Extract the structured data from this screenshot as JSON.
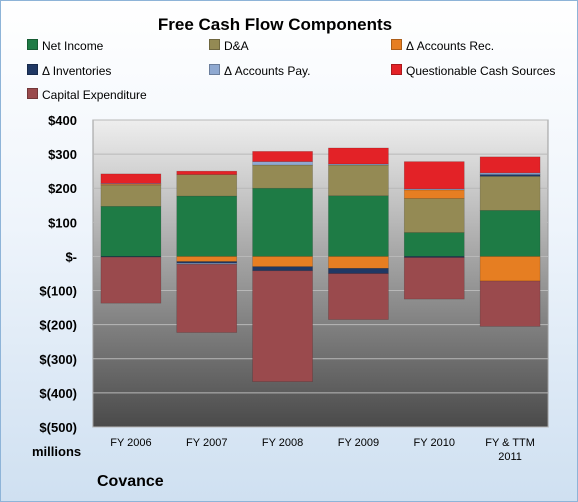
{
  "chart_data": {
    "type": "bar",
    "stacked": true,
    "title": "Free Cash Flow Components",
    "units_label": "millions",
    "company": "Covance",
    "categories": [
      "FY 2006",
      "FY 2007",
      "FY 2008",
      "FY 2009",
      "FY 2010",
      "FY & TTM\n2011"
    ],
    "ylim": [
      -500,
      400
    ],
    "y_ticks": [
      {
        "value": 400,
        "label": "$400"
      },
      {
        "value": 300,
        "label": "$300"
      },
      {
        "value": 200,
        "label": "$200"
      },
      {
        "value": 100,
        "label": "$100"
      },
      {
        "value": 0,
        "label": "$-"
      },
      {
        "value": -100,
        "label": "$(100)"
      },
      {
        "value": -200,
        "label": "$(200)"
      },
      {
        "value": -300,
        "label": "$(300)"
      },
      {
        "value": -400,
        "label": "$(400)"
      },
      {
        "value": -500,
        "label": "$(500)"
      }
    ],
    "grid": true,
    "legend_position": "top",
    "series": [
      {
        "name": "Net Income",
        "color": "#1e7b45",
        "values": [
          147,
          177,
          200,
          178,
          70,
          135
        ]
      },
      {
        "name": "D&A",
        "color": "#948a54",
        "values": [
          62,
          63,
          68,
          90,
          100,
          100
        ]
      },
      {
        "name": "Δ Accounts Rec.",
        "color": "#e67e22",
        "values": [
          3,
          -15,
          -30,
          -35,
          25,
          -72
        ]
      },
      {
        "name": "Δ Inventories",
        "color": "#1f3864",
        "values": [
          -2,
          -5,
          -12,
          -15,
          -3,
          5
        ]
      },
      {
        "name": "Δ Accounts Pay.",
        "color": "#8fa9d1",
        "values": [
          2,
          -3,
          10,
          3,
          3,
          5
        ]
      },
      {
        "name": "Questionable Cash Sources",
        "color": "#e32227",
        "values": [
          28,
          10,
          30,
          47,
          80,
          47
        ]
      },
      {
        "name": "Capital Expenditure",
        "color": "#9a4a4d",
        "values": [
          -135,
          -200,
          -325,
          -135,
          -122,
          -133
        ]
      }
    ]
  }
}
